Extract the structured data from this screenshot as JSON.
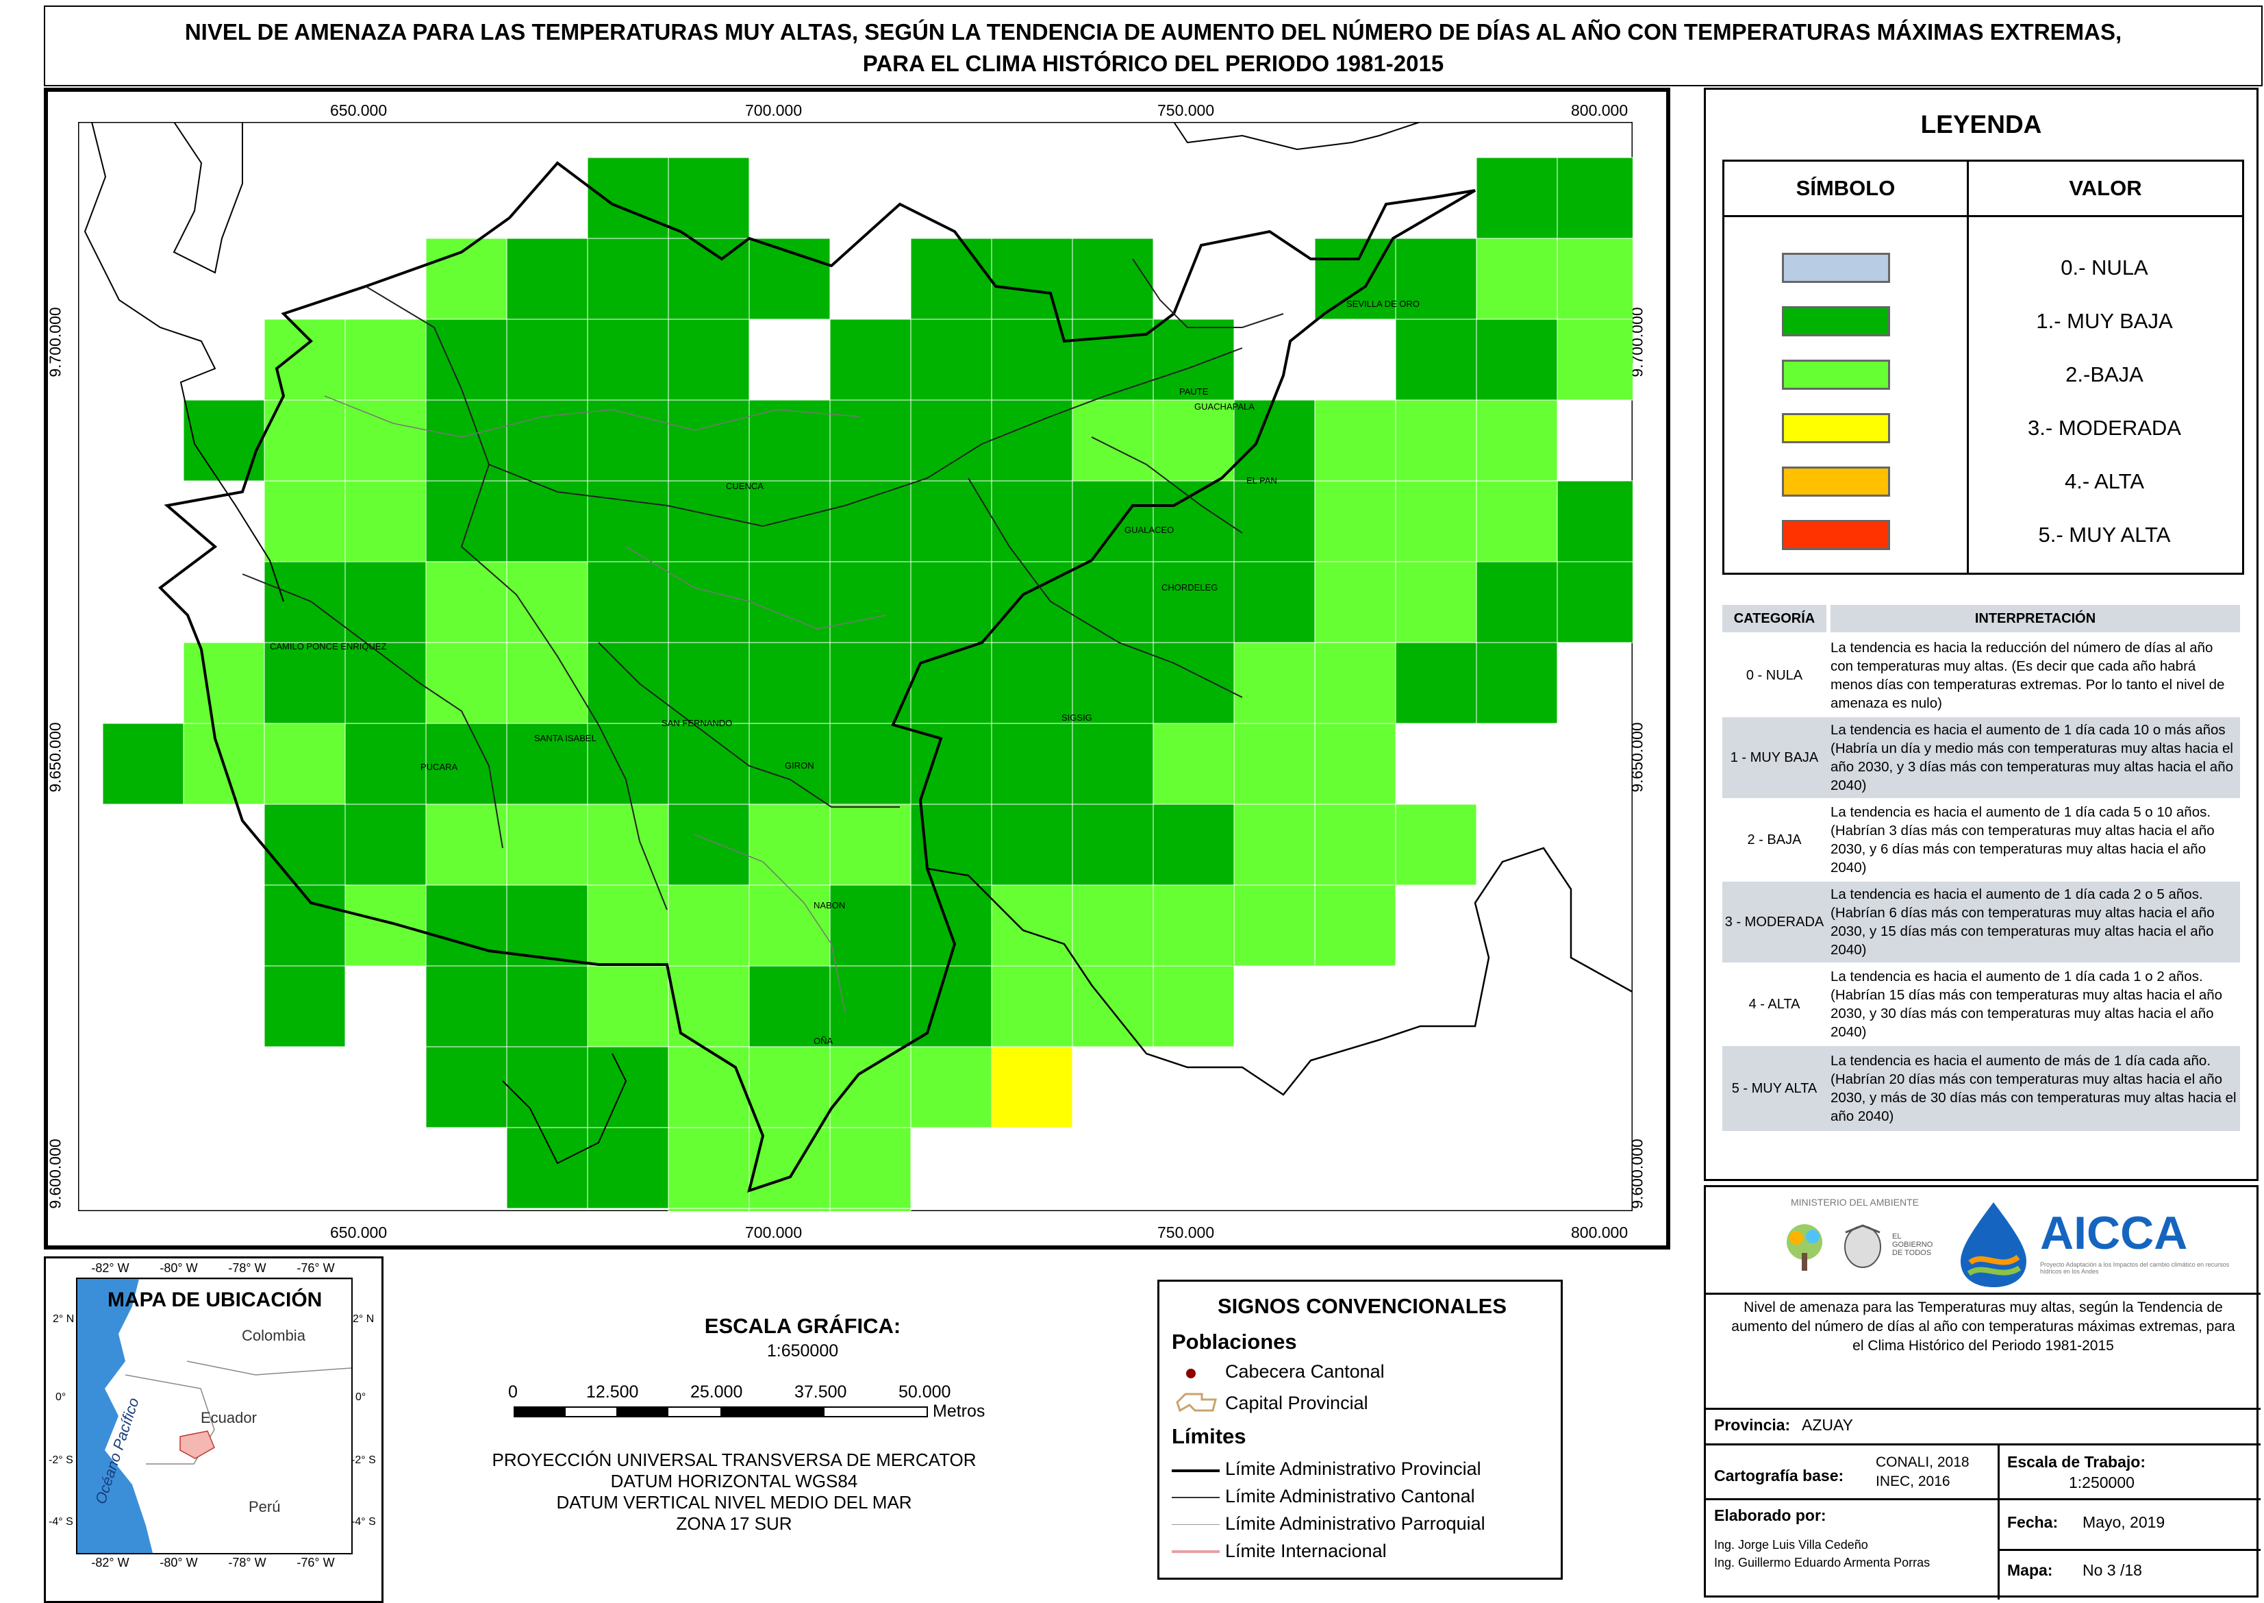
{
  "title": {
    "line1": "NIVEL DE AMENAZA PARA LAS TEMPERATURAS MUY ALTAS, SEGÚN LA TENDENCIA DE AUMENTO DEL NÚMERO DE DÍAS AL AÑO CON TEMPERATURAS MÁXIMAS EXTREMAS,",
    "line2": "PARA EL CLIMA HISTÓRICO DEL PERIODO 1981-2015"
  },
  "map": {
    "x_ticks": [
      "650.000",
      "700.000",
      "750.000",
      "800.000"
    ],
    "y_ticks": [
      "9.700.000",
      "9.650.000",
      "9.600.000"
    ],
    "cantons": [
      "SEVILLA DE ORO",
      "PAUTE",
      "GUACHAPALA",
      "EL PAN",
      "CUENCA",
      "GUALACEO",
      "CHORDELEG",
      "CAMILO PONCE ENRIQUEZ",
      "SIGSIG",
      "SANTA ISABEL",
      "SAN FERNANDO",
      "PUCARA",
      "GIRON",
      "NABON",
      "OÑA"
    ],
    "colors": {
      "muy_baja": "#00b300",
      "baja": "#66ff33",
      "moderada": "#ffff00"
    }
  },
  "legend": {
    "title": "LEYENDA",
    "col_symbol": "SÍMBOLO",
    "col_value": "VALOR",
    "items": [
      {
        "label": "0.- NULA",
        "color": "#b8cce4"
      },
      {
        "label": "1.- MUY BAJA",
        "color": "#00b300"
      },
      {
        "label": "2.-BAJA",
        "color": "#66ff33"
      },
      {
        "label": "3.- MODERADA",
        "color": "#ffff00"
      },
      {
        "label": "4.- ALTA",
        "color": "#ffc000"
      },
      {
        "label": "5.- MUY ALTA",
        "color": "#ff3300"
      }
    ]
  },
  "interpretation": {
    "col_category": "CATEGORÍA",
    "col_interp": "INTERPRETACIÓN",
    "rows": [
      {
        "cat": "0 - NULA",
        "text": "La tendencia es hacia la reducción del número de días al año con temperaturas muy altas. (Es decir que cada año habrá menos días con temperaturas extremas. Por lo tanto el nivel de amenaza es nulo)"
      },
      {
        "cat": "1 - MUY BAJA",
        "text": "La tendencia es hacia el aumento de 1 día cada 10 o más años (Habría un día y medio más con temperaturas muy altas hacia el año 2030, y 3 días más con temperaturas muy altas hacia el año 2040)"
      },
      {
        "cat": "2 - BAJA",
        "text": "La tendencia es hacia el aumento de 1 día cada 5 o 10 años. (Habrían 3 días más con temperaturas muy altas hacia el año 2030, y 6 días más con temperaturas muy altas hacia el año 2040)"
      },
      {
        "cat": "3 - MODERADA",
        "text": "La tendencia es hacia el aumento de 1 día cada 2 o 5 años. (Habrían 6 días más con temperaturas muy altas hacia el año 2030, y 15 días más con temperaturas muy altas hacia el año 2040)"
      },
      {
        "cat": "4 - ALTA",
        "text": "La tendencia es hacia el aumento de 1 día cada 1 o 2 años. (Habrían 15 días más con temperaturas muy altas hacia el año 2030, y 30 días más con temperaturas muy altas hacia el año 2040)"
      },
      {
        "cat": "5 - MUY ALTA",
        "text": "La tendencia es hacia el aumento de más de 1 día cada año. (Habrían 20 días más con temperaturas muy altas hacia el año 2030, y más de 30 días más con temperaturas muy altas hacia el año 2040)"
      }
    ]
  },
  "logos": {
    "ministerio": "MINISTERIO DEL AMBIENTE",
    "aicca": "AICCA",
    "aicca_sub": "Proyecto Adaptación a los Impactos del cambio climático en recursos hídricos en los Andes",
    "gobierno": "EL GOBIERNO DE TODOS"
  },
  "info": {
    "description": "Nivel de amenaza para las Temperaturas muy altas, según la Tendencia de aumento del número de días al año con temperaturas máximas extremas, para el Clima Histórico del Periodo 1981-2015",
    "provincia_label": "Provincia:",
    "provincia": "AZUAY",
    "cartografia_label": "Cartografía base:",
    "cartografia_1": "CONALI, 2018",
    "cartografia_2": "INEC, 2016",
    "escala_label": "Escala de Trabajo:",
    "escala": "1:250000",
    "elaborado_label": "Elaborado por:",
    "autor1": "Ing. Jorge Luis Villa Cedeño",
    "autor2": "Ing. Guillermo Eduardo Armenta Porras",
    "fecha_label": "Fecha:",
    "fecha": "Mayo, 2019",
    "mapa_label": "Mapa:",
    "mapa": "No 3 /18"
  },
  "location_map": {
    "title": "MAPA DE UBICACIÓN",
    "lon_ticks": [
      "-82° W",
      "-80° W",
      "-78° W",
      "-76° W"
    ],
    "lat_ticks": [
      "2° N",
      "0°",
      "-2° S",
      "-4° S"
    ],
    "countries": [
      "Colombia",
      "Ecuador",
      "Perú"
    ],
    "ocean": "Océano Pacífico"
  },
  "scale": {
    "title": "ESCALA GRÁFICA:",
    "ratio": "1:650000",
    "ticks": [
      "0",
      "12.500",
      "25.000",
      "37.500",
      "50.000"
    ],
    "unit": "Metros",
    "proj1": "PROYECCIÓN UNIVERSAL TRANSVERSA DE MERCATOR",
    "proj2": "DATUM HORIZONTAL WGS84",
    "proj3": "DATUM VERTICAL NIVEL MEDIO DEL MAR",
    "proj4": "ZONA 17 SUR"
  },
  "signs": {
    "title": "SIGNOS CONVENCIONALES",
    "poblaciones": "Poblaciones",
    "cabecera": "Cabecera Cantonal",
    "capital": "Capital Provincial",
    "limites": "Límites",
    "lim_prov": "Límite Administrativo Provincial",
    "lim_cant": "Límite Administrativo Cantonal",
    "lim_parr": "Límite Administrativo Parroquial",
    "lim_int": "Límite Internacional"
  }
}
